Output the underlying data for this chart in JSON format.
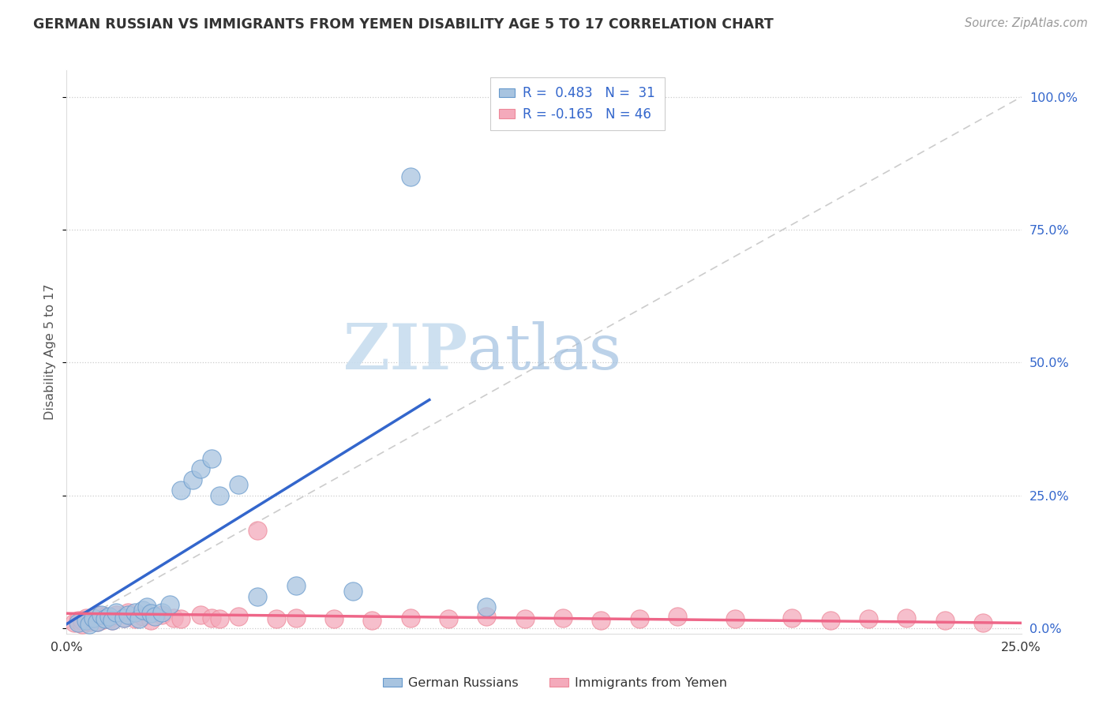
{
  "title": "GERMAN RUSSIAN VS IMMIGRANTS FROM YEMEN DISABILITY AGE 5 TO 17 CORRELATION CHART",
  "source": "Source: ZipAtlas.com",
  "ylabel": "Disability Age 5 to 17",
  "ytick_labels": [
    "0.0%",
    "25.0%",
    "50.0%",
    "75.0%",
    "100.0%"
  ],
  "ytick_vals": [
    0.0,
    0.25,
    0.5,
    0.75,
    1.0
  ],
  "xlim": [
    0.0,
    0.25
  ],
  "ylim": [
    -0.01,
    1.05
  ],
  "legend1_label": "R =  0.483   N =  31",
  "legend2_label": "R = -0.165   N = 46",
  "legend3_label": "German Russians",
  "legend4_label": "Immigrants from Yemen",
  "watermark_zip": "ZIP",
  "watermark_atlas": "atlas",
  "blue_color": "#A8C4E0",
  "pink_color": "#F4AABB",
  "blue_edge_color": "#6699CC",
  "pink_edge_color": "#EE8899",
  "blue_line_color": "#3366CC",
  "pink_line_color": "#EE6688",
  "diag_line_color": "#CCCCCC",
  "blue_points_x": [
    0.003,
    0.005,
    0.006,
    0.007,
    0.008,
    0.009,
    0.01,
    0.011,
    0.012,
    0.013,
    0.015,
    0.016,
    0.018,
    0.019,
    0.02,
    0.021,
    0.022,
    0.023,
    0.025,
    0.027,
    0.03,
    0.033,
    0.035,
    0.038,
    0.04,
    0.045,
    0.05,
    0.06,
    0.075,
    0.09,
    0.11
  ],
  "blue_points_y": [
    0.01,
    0.015,
    0.008,
    0.02,
    0.012,
    0.025,
    0.018,
    0.022,
    0.015,
    0.03,
    0.02,
    0.025,
    0.03,
    0.018,
    0.035,
    0.04,
    0.028,
    0.022,
    0.03,
    0.045,
    0.26,
    0.28,
    0.3,
    0.32,
    0.25,
    0.27,
    0.06,
    0.08,
    0.07,
    0.85,
    0.04
  ],
  "pink_points_x": [
    0.002,
    0.003,
    0.004,
    0.005,
    0.006,
    0.007,
    0.008,
    0.009,
    0.01,
    0.011,
    0.012,
    0.013,
    0.015,
    0.016,
    0.018,
    0.02,
    0.022,
    0.025,
    0.028,
    0.03,
    0.035,
    0.038,
    0.04,
    0.045,
    0.05,
    0.06,
    0.07,
    0.08,
    0.09,
    0.1,
    0.11,
    0.12,
    0.13,
    0.14,
    0.15,
    0.16,
    0.175,
    0.19,
    0.2,
    0.21,
    0.22,
    0.23,
    0.004,
    0.008,
    0.055,
    0.24
  ],
  "pink_points_y": [
    0.01,
    0.015,
    0.008,
    0.02,
    0.012,
    0.018,
    0.025,
    0.015,
    0.022,
    0.018,
    0.015,
    0.025,
    0.02,
    0.03,
    0.018,
    0.022,
    0.015,
    0.025,
    0.02,
    0.018,
    0.025,
    0.02,
    0.018,
    0.022,
    0.185,
    0.02,
    0.018,
    0.015,
    0.02,
    0.018,
    0.022,
    0.018,
    0.02,
    0.015,
    0.018,
    0.022,
    0.018,
    0.02,
    0.015,
    0.018,
    0.02,
    0.015,
    0.015,
    0.012,
    0.018,
    0.01
  ],
  "blue_line_x": [
    0.0,
    0.095
  ],
  "blue_line_y": [
    0.008,
    0.43
  ],
  "pink_line_x": [
    0.0,
    0.25
  ],
  "pink_line_y": [
    0.028,
    0.01
  ]
}
